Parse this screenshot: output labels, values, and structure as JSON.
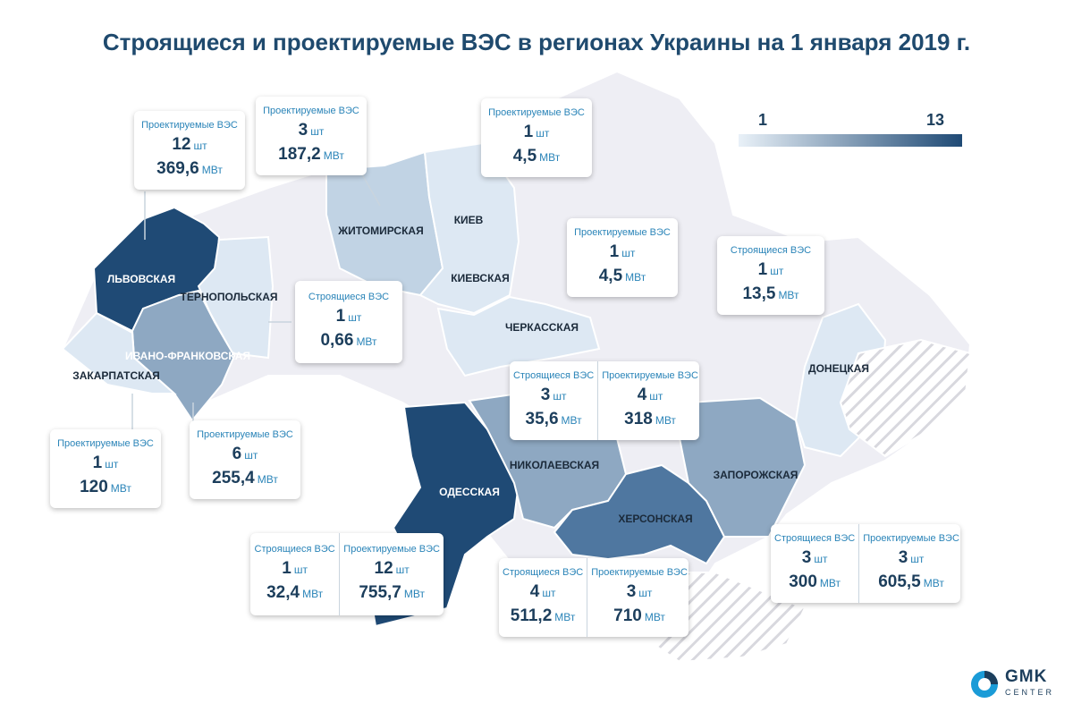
{
  "title": "Строящиеся и проектируемые ВЭС в регионах Украины на 1 января 2019 г.",
  "legend": {
    "min": "1",
    "max": "13",
    "color_low": "#e9f1f8",
    "color_high": "#1f4a75"
  },
  "regions": {
    "lviv": "ЛЬВОВСКАЯ",
    "ternopil": "ТЕРНОПОЛЬСКАЯ",
    "ivano": "ИВАНО-ФРАНКОВСКАЯ",
    "zakarpat": "ЗАКАРПАТСКАЯ",
    "zhytomyr": "ЖИТОМИРСКАЯ",
    "kiev_city": "КИЕВ",
    "kiev": "КИЕВСКАЯ",
    "cherkassy": "ЧЕРКАССКАЯ",
    "odessa": "ОДЕССКАЯ",
    "nikolaev": "НИКОЛАЕВСКАЯ",
    "kherson": "ХЕРСОНСКАЯ",
    "zaporozhye": "ЗАПОРОЖСКАЯ",
    "donetsk": "ДОНЕЦКАЯ"
  },
  "boxes": {
    "lviv": {
      "col1": {
        "type": "Проектируемые ВЭС",
        "count": "12",
        "count_unit": "шт",
        "power": "369,6",
        "power_unit": "МВт"
      }
    },
    "zhytomyr": {
      "col1": {
        "type": "Проектируемые ВЭС",
        "count": "3",
        "count_unit": "шт",
        "power": "187,2",
        "power_unit": "МВт"
      }
    },
    "kiev": {
      "col1": {
        "type": "Проектируемые ВЭС",
        "count": "1",
        "count_unit": "шт",
        "power": "4,5",
        "power_unit": "МВт"
      }
    },
    "cherkassy": {
      "col1": {
        "type": "Проектируемые ВЭС",
        "count": "1",
        "count_unit": "шт",
        "power": "4,5",
        "power_unit": "МВт"
      }
    },
    "kharkiv": {
      "col1": {
        "type": "Строящиеся ВЭС",
        "count": "1",
        "count_unit": "шт",
        "power": "13,5",
        "power_unit": "МВт"
      }
    },
    "ternopil": {
      "col1": {
        "type": "Строящиеся ВЭС",
        "count": "1",
        "count_unit": "шт",
        "power": "0,66",
        "power_unit": "МВт"
      }
    },
    "nikolaev": {
      "col1": {
        "type": "Строящиеся ВЭС",
        "count": "3",
        "count_unit": "шт",
        "power": "35,6",
        "power_unit": "МВт"
      },
      "col2": {
        "type": "Проектируемые ВЭС",
        "count": "4",
        "count_unit": "шт",
        "power": "318",
        "power_unit": "МВт"
      }
    },
    "zakarpat": {
      "col1": {
        "type": "Проектируемые ВЭС",
        "count": "1",
        "count_unit": "шт",
        "power": "120",
        "power_unit": "МВт"
      }
    },
    "ivano": {
      "col1": {
        "type": "Проектируемые ВЭС",
        "count": "6",
        "count_unit": "шт",
        "power": "255,4",
        "power_unit": "МВт"
      }
    },
    "odessa": {
      "col1": {
        "type": "Строящиеся ВЭС",
        "count": "1",
        "count_unit": "шт",
        "power": "32,4",
        "power_unit": "МВт"
      },
      "col2": {
        "type": "Проектируемые ВЭС",
        "count": "12",
        "count_unit": "шт",
        "power": "755,7",
        "power_unit": "МВт"
      }
    },
    "kherson": {
      "col1": {
        "type": "Строящиеся ВЭС",
        "count": "4",
        "count_unit": "шт",
        "power": "511,2",
        "power_unit": "МВт"
      },
      "col2": {
        "type": "Проектируемые ВЭС",
        "count": "3",
        "count_unit": "шт",
        "power": "710",
        "power_unit": "МВт"
      }
    },
    "zaporozhye": {
      "col1": {
        "type": "Строящиеся ВЭС",
        "count": "3",
        "count_unit": "шт",
        "power": "300",
        "power_unit": "МВт"
      },
      "col2": {
        "type": "Проектируемые ВЭС",
        "count": "3",
        "count_unit": "шт",
        "power": "605,5",
        "power_unit": "МВт"
      }
    }
  },
  "logo": {
    "name": "GMK",
    "sub": "CENTER"
  },
  "colors": {
    "base": "#eeeef4",
    "border": "#ffffff",
    "dark": "#1f4a75",
    "medium": "#4f77a0",
    "mid": "#8ea8c2",
    "light": "#c1d3e4",
    "vlight": "#dde8f3",
    "accent": "#2a84b8"
  }
}
